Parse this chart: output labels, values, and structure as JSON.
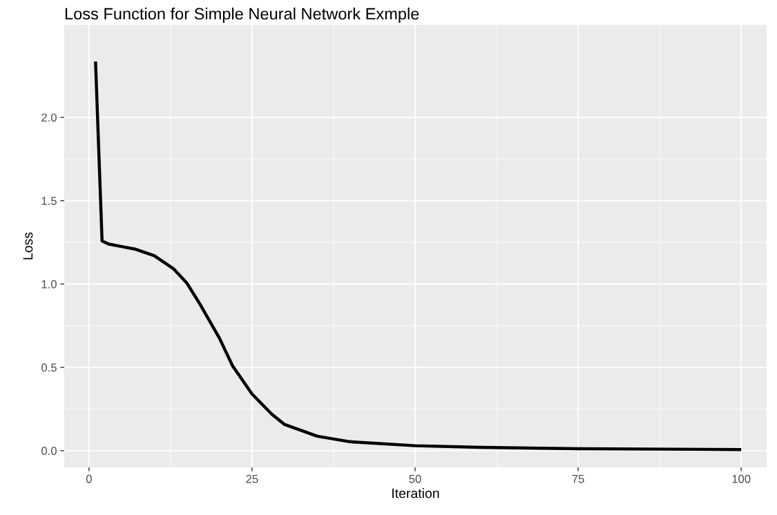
{
  "chart_data": {
    "type": "line",
    "title": "Loss Function for Simple Neural Network Exmple",
    "xlabel": "Iteration",
    "ylabel": "Loss",
    "series": [
      {
        "color": "#000000",
        "x": [
          1,
          2,
          3,
          5,
          7,
          10,
          13,
          15,
          17,
          20,
          22,
          25,
          28,
          30,
          35,
          40,
          50,
          60,
          75,
          100
        ],
        "values": [
          2.335,
          1.259,
          1.24,
          1.225,
          1.21,
          1.17,
          1.09,
          1.006,
          0.88,
          0.675,
          0.51,
          0.34,
          0.22,
          0.157,
          0.087,
          0.054,
          0.03,
          0.02,
          0.012,
          0.007
        ]
      }
    ],
    "xlim": [
      -3.8,
      103.9
    ],
    "ylim": [
      -0.1,
      2.555
    ],
    "xticks": [
      0,
      25,
      50,
      75,
      100
    ],
    "yticks": [
      {
        "value": 0,
        "label": "0.0"
      },
      {
        "value": 0.5,
        "label": "0.5"
      },
      {
        "value": 1,
        "label": "1.0"
      },
      {
        "value": 1.5,
        "label": "1.5"
      },
      {
        "value": 2,
        "label": "2.0"
      }
    ],
    "grid": true,
    "marker": "none",
    "line_style": "solid"
  }
}
